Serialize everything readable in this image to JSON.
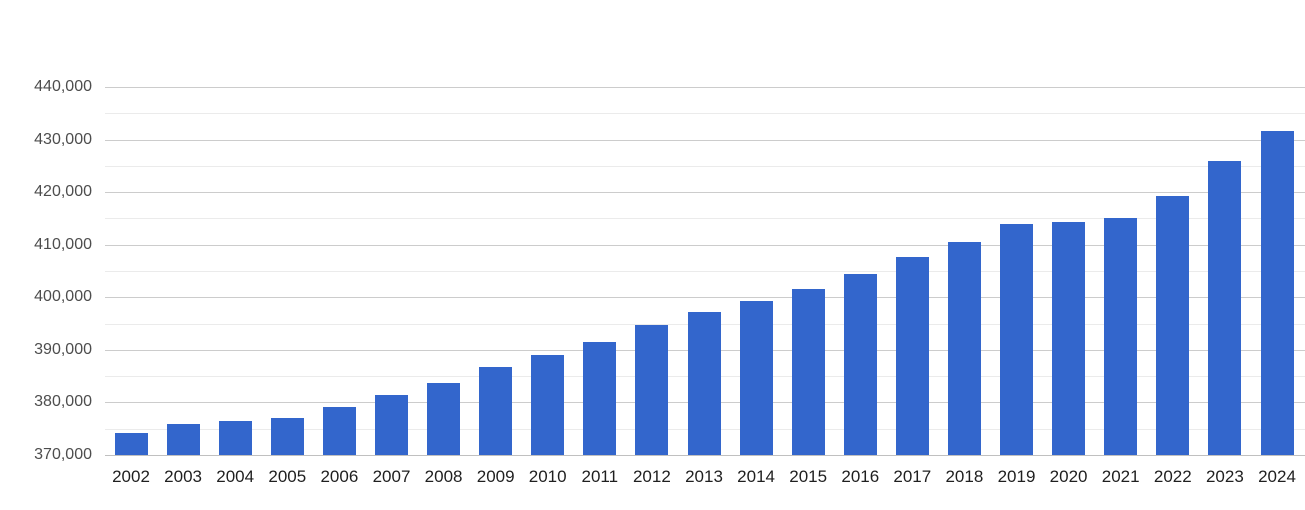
{
  "chart_data": {
    "type": "bar",
    "title": "",
    "xlabel": "",
    "ylabel": "",
    "legend_position": "none",
    "grid": true,
    "categories": [
      "2002",
      "2003",
      "2004",
      "2005",
      "2006",
      "2007",
      "2008",
      "2009",
      "2010",
      "2011",
      "2012",
      "2013",
      "2014",
      "2015",
      "2016",
      "2017",
      "2018",
      "2019",
      "2020",
      "2021",
      "2022",
      "2023",
      "2024"
    ],
    "values": [
      374100,
      376000,
      376500,
      377000,
      379100,
      381400,
      383700,
      386700,
      389000,
      391500,
      394700,
      397200,
      399300,
      401600,
      404500,
      407700,
      410500,
      414000,
      414300,
      415100,
      419300,
      426000,
      431600
    ],
    "ylim": [
      370000,
      445000
    ],
    "y_major_tick_step": 10000,
    "y_minor_grid_step": 5000,
    "y_tick_labels": [
      "370,000",
      "380,000",
      "390,000",
      "400,000",
      "410,000",
      "420,000",
      "430,000",
      "440,000"
    ],
    "colors": {
      "bar": "#3366cc",
      "major_grid": "#cccccc",
      "minor_grid": "#ebebeb",
      "baseline_grid": "#c0c0c0",
      "y_tick_text": "#4d4d4d",
      "x_tick_text": "#1f1f1f",
      "background": "#ffffff"
    }
  }
}
